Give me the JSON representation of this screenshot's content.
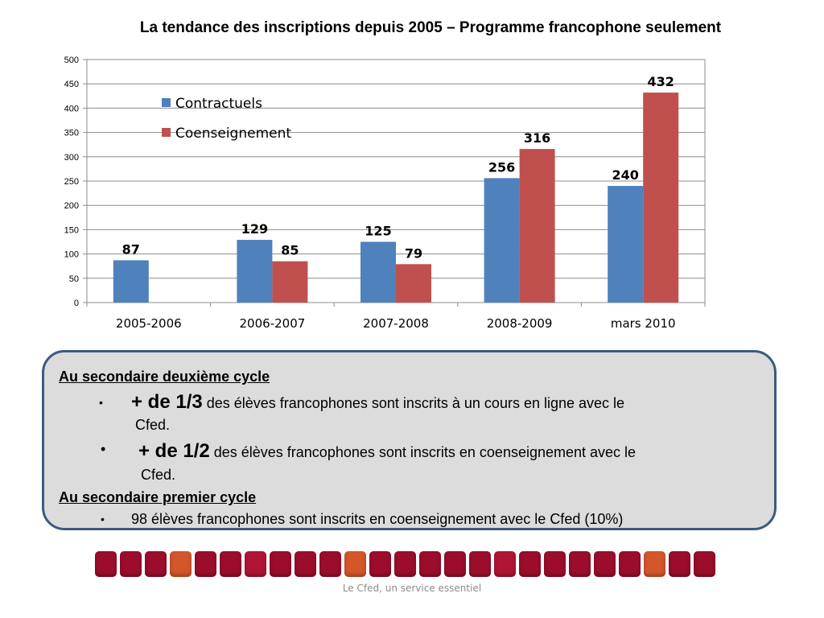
{
  "chart_data": {
    "type": "bar",
    "title": "La tendance des inscriptions depuis 2005 – Programme francophone seulement",
    "categories": [
      "2005-2006",
      "2006-2007",
      "2007-2008",
      "2008-2009",
      "mars 2010"
    ],
    "series": [
      {
        "name": "Contractuels",
        "color": "#4f81bd",
        "values": [
          87,
          129,
          125,
          256,
          240
        ]
      },
      {
        "name": "Coenseignement",
        "color": "#c0504d",
        "values": [
          null,
          85,
          79,
          316,
          432
        ]
      }
    ],
    "data_labels": {
      "Contractuels": [
        "87",
        "129",
        "125",
        "256",
        "240"
      ],
      "Coenseignement": [
        "",
        "85",
        "79",
        "316",
        "432"
      ]
    },
    "ylim": [
      0,
      500
    ],
    "yticks": [
      "0",
      "50",
      "100",
      "150",
      "200",
      "250",
      "300",
      "350",
      "400",
      "450",
      "500"
    ],
    "grid": true,
    "legend_position": "top-left"
  },
  "note": {
    "section1_title": "Au secondaire deuxième cycle",
    "bullet1_mark": "•",
    "bullet1_big": "+ de 1/3",
    "bullet1_text": " des élèves francophones sont inscrits à un cours en ligne avec le",
    "bullet1_cont": "Cfed.",
    "bullet2_mark": "•",
    "bullet2_big": "+ de 1/2",
    "bullet2_text": " des élèves francophones sont inscrits en coenseignement avec le",
    "bullet2_cont": "Cfed.",
    "section2_title": "Au secondaire premier cycle",
    "bullet3_mark": "•",
    "bullet3_text": "98 élèves francophones sont inscrits en coenseignement avec le Cfed (10%)"
  },
  "footer": "Le Cfed, un service essentiel",
  "decor_colors": [
    "#9b0d2b",
    "#9b0d2b",
    "#9b0d2b",
    "#d4562b",
    "#9b0d2b",
    "#9b0d2b",
    "#b01535",
    "#9b0d2b",
    "#9b0d2b",
    "#9b0d2b",
    "#d4562b",
    "#9b0d2b",
    "#9b0d2b",
    "#9b0d2b",
    "#9b0d2b",
    "#9b0d2b",
    "#b01535",
    "#9b0d2b",
    "#9b0d2b",
    "#9b0d2b",
    "#9b0d2b",
    "#9b0d2b",
    "#d4562b",
    "#9b0d2b",
    "#9b0d2b"
  ]
}
